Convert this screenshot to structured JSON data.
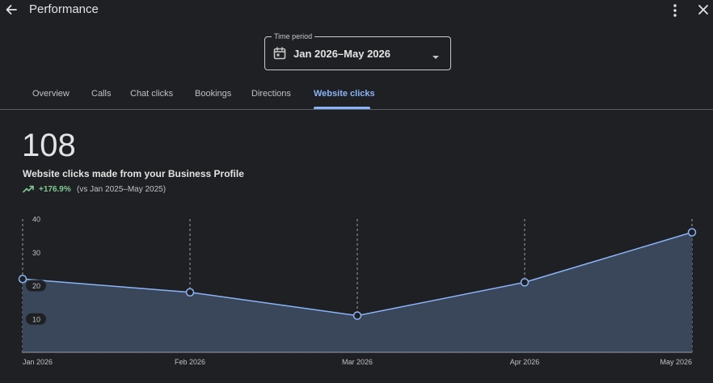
{
  "header": {
    "title": "Performance",
    "back_icon": "arrow-back-icon",
    "more_icon": "more-vert-icon",
    "close_icon": "close-icon"
  },
  "period": {
    "label": "Time period",
    "value": "Jan 2026–May 2026",
    "icon": "calendar-icon"
  },
  "tabs": [
    {
      "label": "Overview",
      "active": false
    },
    {
      "label": "Calls",
      "active": false
    },
    {
      "label": "Chat clicks",
      "active": false
    },
    {
      "label": "Bookings",
      "active": false
    },
    {
      "label": "Directions",
      "active": false
    },
    {
      "label": "Website clicks",
      "active": true
    }
  ],
  "metric": {
    "value": "108",
    "description": "Website clicks made from your Business Profile",
    "change": "+176.9%",
    "comparison": "(vs Jan 2025–May 2025)"
  },
  "colors": {
    "background": "#1f2023",
    "accent": "#8ab4f8",
    "positive": "#81c995",
    "area_fill": "#3a4659"
  },
  "chart_data": {
    "type": "area",
    "categories": [
      "Jan 2026",
      "Feb 2026",
      "Mar 2026",
      "Apr 2026",
      "May 2026"
    ],
    "values": [
      22,
      18,
      11,
      21,
      36
    ],
    "yticks": [
      10,
      20,
      30,
      40
    ],
    "ylim": [
      0,
      40
    ],
    "grid": "vertical dashed at each category"
  }
}
